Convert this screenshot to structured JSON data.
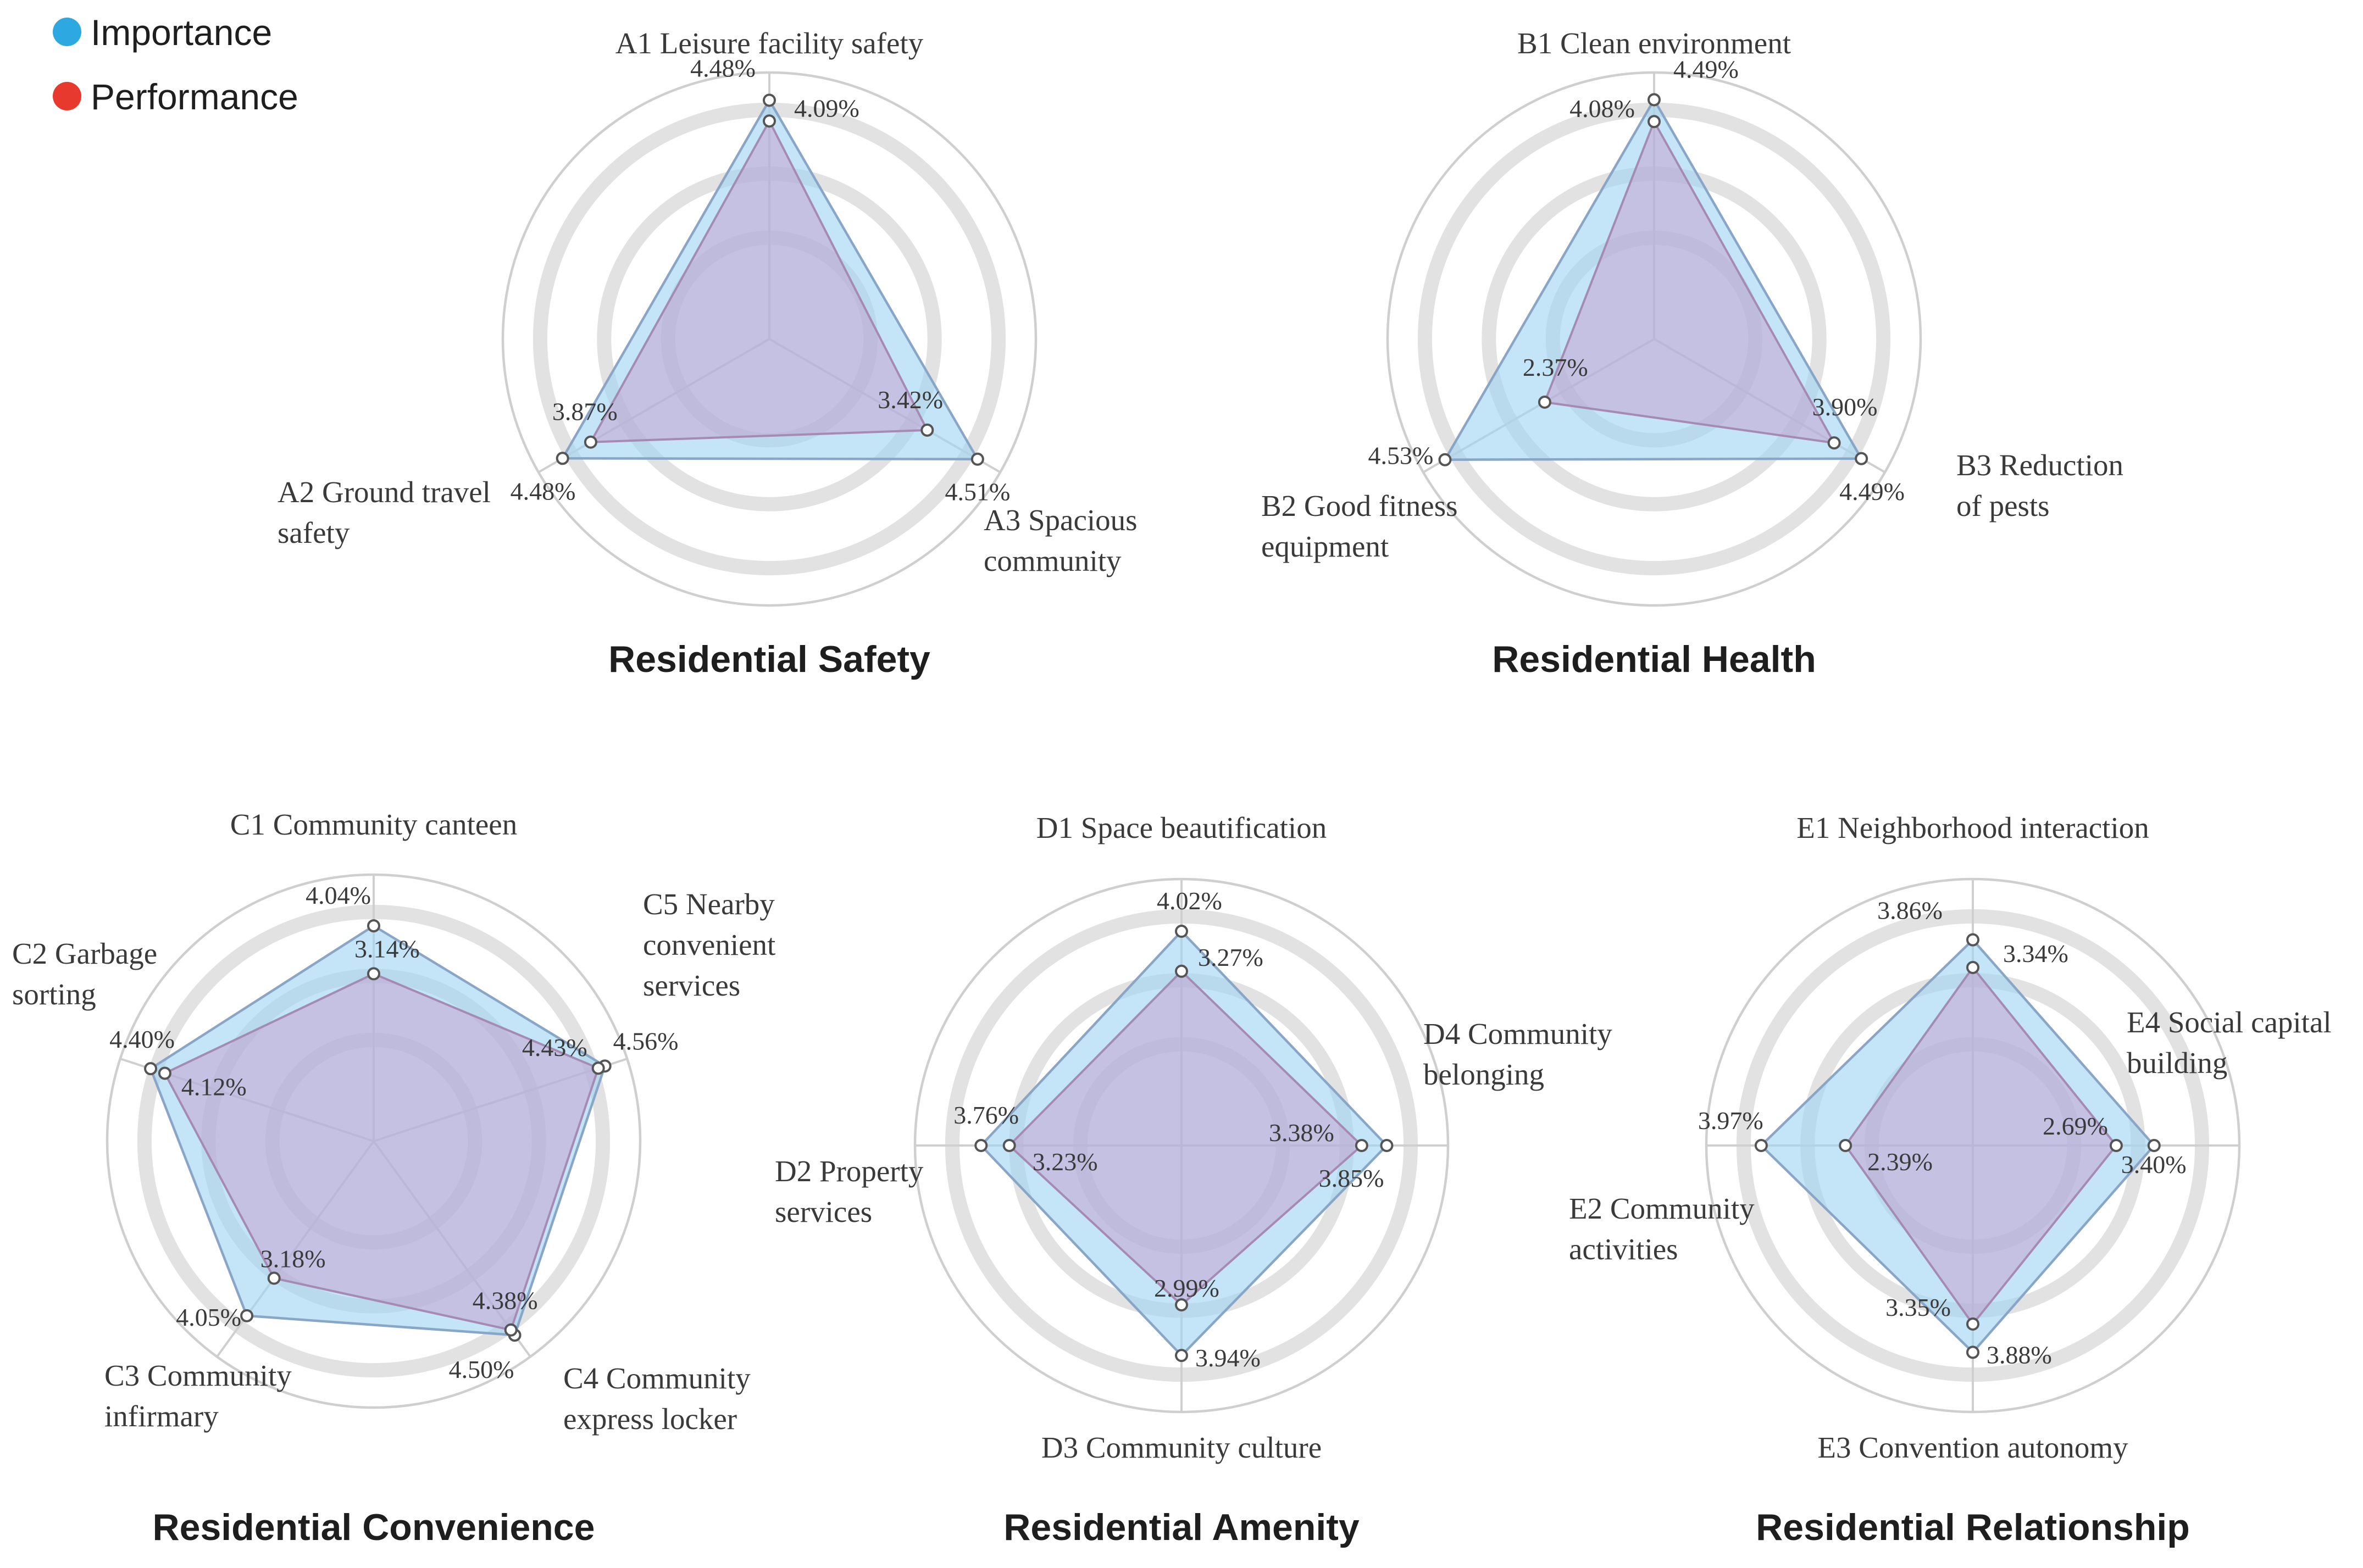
{
  "legend": {
    "items": [
      {
        "label": "Importance",
        "color": "#2ea8e0"
      },
      {
        "label": "Performance",
        "color": "#e8392e"
      }
    ]
  },
  "chart_data": [
    {
      "type": "radar",
      "title": "Residential Safety",
      "categories": [
        "A1 Leisure facility safety",
        "A3 Spacious community",
        "A2 Ground travel safety"
      ],
      "series": [
        {
          "name": "Importance",
          "values": [
            4.48,
            4.51,
            4.48
          ]
        },
        {
          "name": "Performance",
          "values": [
            4.09,
            3.42,
            3.87
          ]
        }
      ],
      "value_labels": [
        {
          "importance": "4.48%",
          "performance": "4.09%"
        },
        {
          "importance": "4.51%",
          "performance": "3.42%"
        },
        {
          "importance": "4.48%",
          "performance": "3.87%"
        }
      ],
      "rlim": [
        0,
        5
      ]
    },
    {
      "type": "radar",
      "title": "Residential Health",
      "categories": [
        "B1 Clean environment",
        "B3 Reduction of pests",
        "B2 Good fitness equipment"
      ],
      "series": [
        {
          "name": "Importance",
          "values": [
            4.49,
            4.49,
            4.53
          ]
        },
        {
          "name": "Performance",
          "values": [
            4.08,
            3.9,
            2.37
          ]
        }
      ],
      "value_labels": [
        {
          "importance": "4.49%",
          "performance": "4.08%"
        },
        {
          "importance": "4.49%",
          "performance": "3.90%"
        },
        {
          "importance": "4.53%",
          "performance": "2.37%"
        }
      ],
      "rlim": [
        0,
        5
      ]
    },
    {
      "type": "radar",
      "title": "Residential Convenience",
      "categories": [
        "C1 Community canteen",
        "C5 Nearby convenient services",
        "C4 Community express locker",
        "C3 Community infirmary",
        "C2 Garbage sorting"
      ],
      "series": [
        {
          "name": "Importance",
          "values": [
            4.04,
            4.56,
            4.5,
            4.05,
            4.4
          ]
        },
        {
          "name": "Performance",
          "values": [
            3.14,
            4.43,
            4.38,
            3.18,
            4.12
          ]
        }
      ],
      "value_labels": [
        {
          "importance": "4.04%",
          "performance": "3.14%"
        },
        {
          "importance": "4.56%",
          "performance": "4.43%"
        },
        {
          "importance": "4.50%",
          "performance": "4.38%"
        },
        {
          "importance": "4.05%",
          "performance": "3.18%"
        },
        {
          "importance": "4.40%",
          "performance": "4.12%"
        }
      ],
      "rlim": [
        0,
        5
      ]
    },
    {
      "type": "radar",
      "title": "Residential Amenity",
      "categories": [
        "D1 Space beautification",
        "D4 Community belonging",
        "D3 Community culture",
        "D2 Property services"
      ],
      "series": [
        {
          "name": "Importance",
          "values": [
            4.02,
            3.85,
            3.94,
            3.76
          ]
        },
        {
          "name": "Performance",
          "values": [
            3.27,
            3.38,
            2.99,
            3.23
          ]
        }
      ],
      "value_labels": [
        {
          "importance": "4.02%",
          "performance": "3.27%"
        },
        {
          "importance": "3.85%",
          "performance": "3.38%"
        },
        {
          "importance": "3.94%",
          "performance": "2.99%"
        },
        {
          "importance": "3.76%",
          "performance": "3.23%"
        }
      ],
      "rlim": [
        0,
        5
      ]
    },
    {
      "type": "radar",
      "title": "Residential Relationship",
      "categories": [
        "E1 Neighborhood interaction",
        "E4 Social capital building",
        "E3 Convention autonomy",
        "E2 Community activities"
      ],
      "series": [
        {
          "name": "Importance",
          "values": [
            3.86,
            3.4,
            3.88,
            3.97
          ]
        },
        {
          "name": "Performance",
          "values": [
            3.34,
            2.69,
            3.35,
            2.39
          ]
        }
      ],
      "value_labels": [
        {
          "importance": "3.86%",
          "performance": "3.34%"
        },
        {
          "importance": "3.40%",
          "performance": "2.69%"
        },
        {
          "importance": "3.88%",
          "performance": "3.35%"
        },
        {
          "importance": "3.97%",
          "performance": "2.39%"
        }
      ],
      "rlim": [
        0,
        5
      ]
    }
  ]
}
